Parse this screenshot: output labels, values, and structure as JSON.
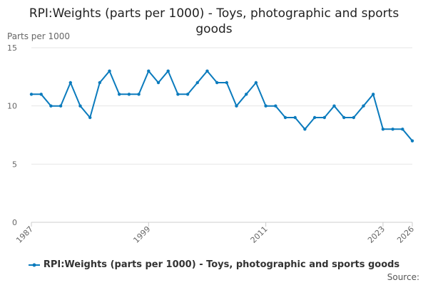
{
  "chart_data": {
    "type": "line",
    "title": "RPI:Weights (parts per 1000) - Toys, photographic and sports goods",
    "ylabel": "Parts per 1000",
    "xlabel": "",
    "ylim": [
      0,
      15
    ],
    "xlim": [
      1987,
      2026
    ],
    "yticks": [
      "0",
      "5",
      "10",
      "15"
    ],
    "xticks": [
      "1987",
      "1999",
      "2011",
      "2023",
      "2026"
    ],
    "grid": "horizontal",
    "legend_position": "bottom",
    "series": [
      {
        "name": "RPI:Weights (parts per 1000) - Toys, photographic and sports goods",
        "color": "#0b7bbd",
        "x": [
          1987,
          1988,
          1989,
          1990,
          1991,
          1992,
          1993,
          1994,
          1995,
          1996,
          1997,
          1998,
          1999,
          2000,
          2001,
          2002,
          2003,
          2004,
          2005,
          2006,
          2007,
          2008,
          2009,
          2010,
          2011,
          2012,
          2013,
          2014,
          2015,
          2016,
          2017,
          2018,
          2019,
          2020,
          2021,
          2022,
          2023,
          2024,
          2025,
          2026
        ],
        "values": [
          11,
          11,
          10,
          10,
          12,
          10,
          9,
          12,
          13,
          11,
          11,
          11,
          13,
          12,
          13,
          11,
          11,
          12,
          13,
          12,
          12,
          10,
          11,
          12,
          10,
          10,
          9,
          9,
          8,
          9,
          9,
          10,
          9,
          9,
          10,
          11,
          8,
          8,
          8,
          7
        ]
      }
    ]
  },
  "legend": {
    "label": "RPI:Weights (parts per 1000) - Toys, photographic and sports goods"
  },
  "source": {
    "label": "Source:"
  },
  "colors": {
    "line": "#0b7bbd",
    "grid": "#e6e6e6",
    "axis": "#cccccc",
    "tick_text": "#666666"
  }
}
